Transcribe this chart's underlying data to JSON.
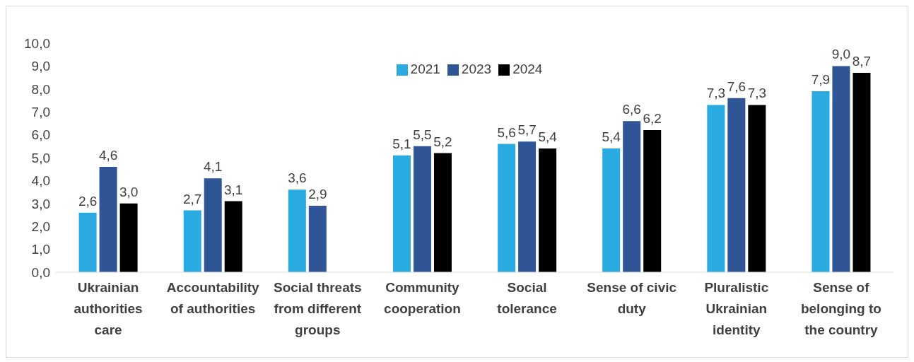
{
  "chart_data": {
    "type": "bar",
    "categories": [
      "Ukrainian authorities care",
      "Accountability of authorities",
      "Social threats from different groups",
      "Community cooperation",
      "Social tolerance",
      "Sense of civic duty",
      "Pluralistic Ukrainian identity",
      "Sense of belonging to the country"
    ],
    "series": [
      {
        "name": "2021",
        "color": "#29abe2",
        "values": [
          2.6,
          2.7,
          3.6,
          5.1,
          5.6,
          5.4,
          7.3,
          7.9
        ],
        "value_labels": [
          "2,6",
          "2,7",
          "3,6",
          "5,1",
          "5,6",
          "5,4",
          "7,3",
          "7,9"
        ]
      },
      {
        "name": "2023",
        "color": "#2f5597",
        "values": [
          4.6,
          4.1,
          2.9,
          5.5,
          5.7,
          6.6,
          7.6,
          9.0
        ],
        "value_labels": [
          "4,6",
          "4,1",
          "2,9",
          "5,5",
          "5,7",
          "6,6",
          "7,6",
          "9,0"
        ]
      },
      {
        "name": "2024",
        "color": "#000000",
        "values": [
          3.0,
          3.1,
          null,
          5.2,
          5.4,
          6.2,
          7.3,
          8.7
        ],
        "value_labels": [
          "3,0",
          "3,1",
          null,
          "5,2",
          "5,4",
          "6,2",
          "7,3",
          "8,7"
        ]
      }
    ],
    "ylim": [
      0,
      10
    ],
    "yticks": [
      {
        "value": 0,
        "label": "0,0"
      },
      {
        "value": 1,
        "label": "1,0"
      },
      {
        "value": 2,
        "label": "2,0"
      },
      {
        "value": 3,
        "label": "3,0"
      },
      {
        "value": 4,
        "label": "4,0"
      },
      {
        "value": 5,
        "label": "5,0"
      },
      {
        "value": 6,
        "label": "6,0"
      },
      {
        "value": 7,
        "label": "7,0"
      },
      {
        "value": 8,
        "label": "8,0"
      },
      {
        "value": 9,
        "label": "9,0"
      },
      {
        "value": 10,
        "label": "10,0"
      }
    ],
    "grid": false,
    "legend": "top"
  }
}
